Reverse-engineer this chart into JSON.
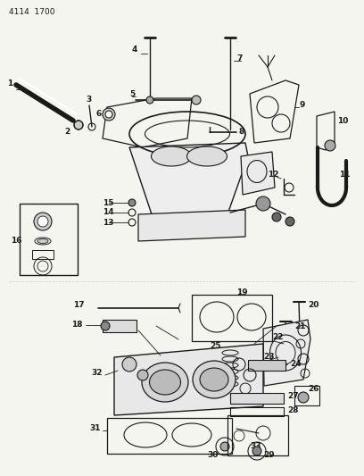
{
  "header": "4114  1700",
  "bg_color": "#f5f5f0",
  "line_color": "#1a1a1a",
  "fig_width": 4.08,
  "fig_height": 5.33,
  "dpi": 100
}
